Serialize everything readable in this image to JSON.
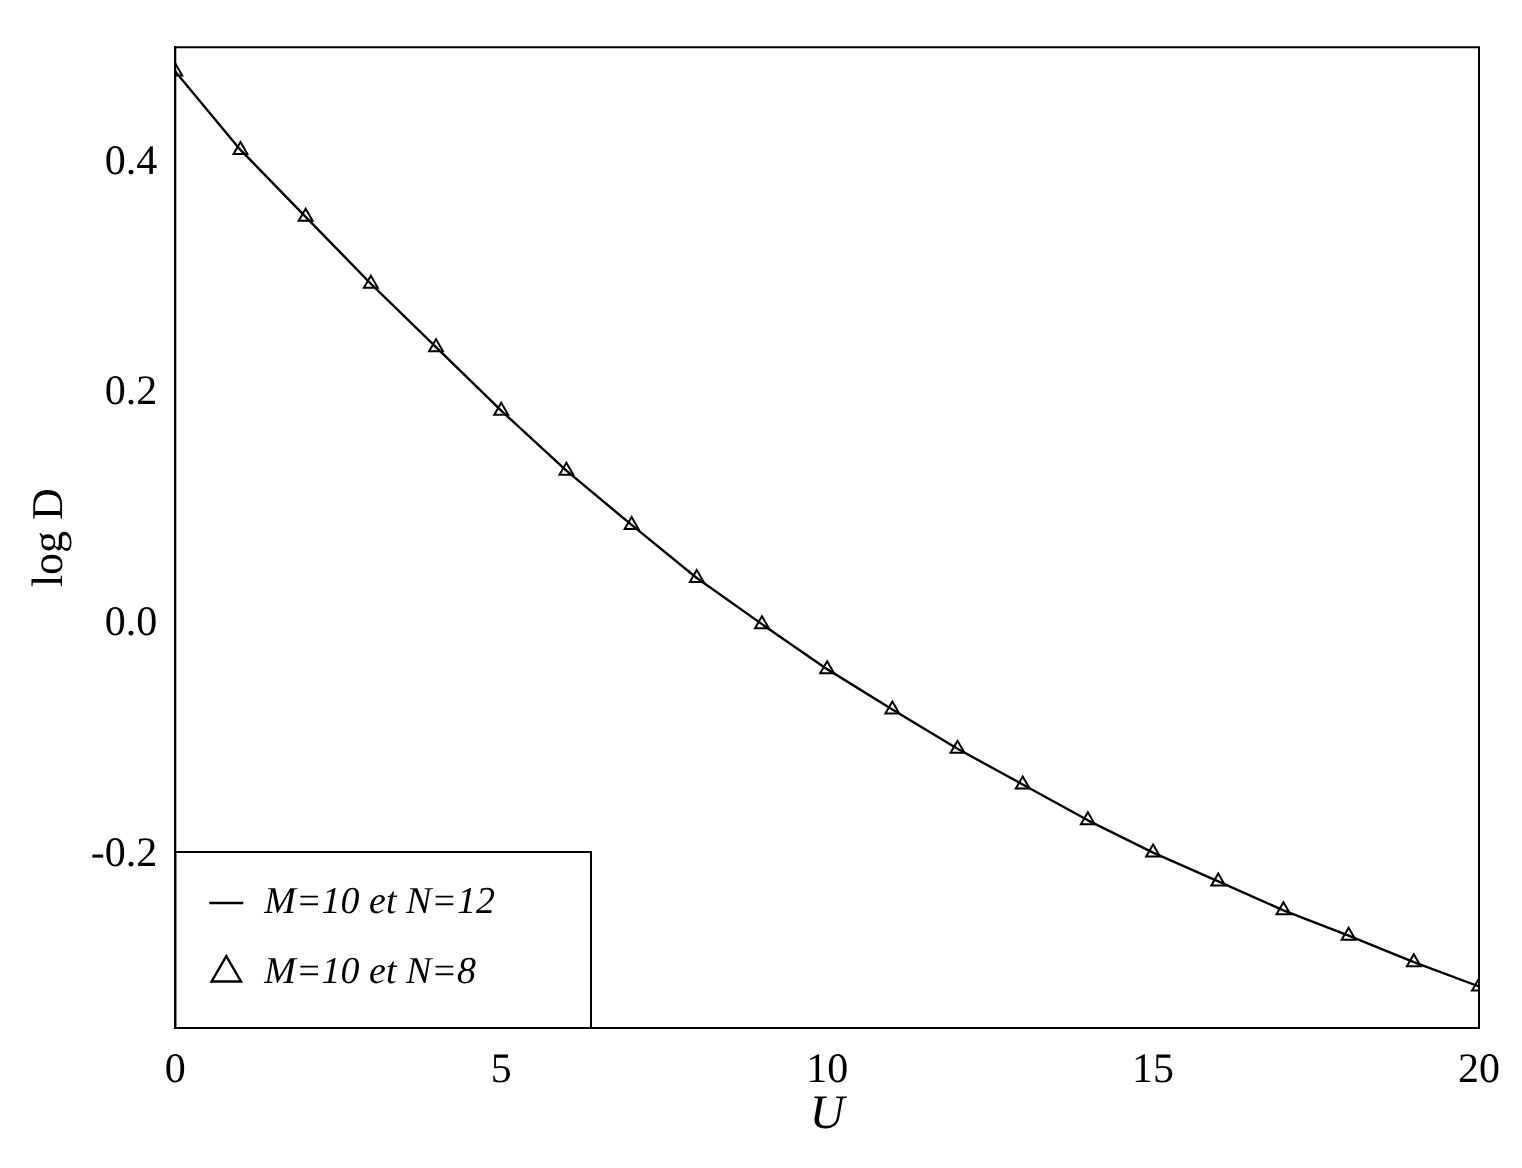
{
  "chart_data": {
    "type": "line",
    "xlabel": "U",
    "ylabel": "log D",
    "xlim": [
      0,
      20
    ],
    "ylim": [
      -0.35,
      0.5
    ],
    "xticks": [
      0,
      5,
      10,
      15,
      20
    ],
    "yticks": [
      {
        "value": -0.2,
        "label": "-0.2"
      },
      {
        "value": 0,
        "label": "0.0"
      },
      {
        "value": 0.2,
        "label": "0.2"
      },
      {
        "value": 0.4,
        "label": "0.4"
      }
    ],
    "grid": false,
    "legend": "bottom left",
    "x": [
      0,
      1,
      2,
      3,
      4,
      5,
      6,
      7,
      8,
      9,
      10,
      11,
      12,
      13,
      14,
      15,
      16,
      17,
      18,
      19,
      20
    ],
    "series": [
      {
        "name": "M=10 et N=12",
        "type": "line",
        "marker": "none",
        "color": "#000000",
        "values": [
          0.479,
          0.411,
          0.353,
          0.295,
          0.24,
          0.185,
          0.133,
          0.086,
          0.04,
          0.0,
          -0.039,
          -0.074,
          -0.108,
          -0.139,
          -0.17,
          -0.198,
          -0.223,
          -0.248,
          -0.27,
          -0.293,
          -0.314
        ]
      },
      {
        "name": "M=10 et N=8",
        "type": "scatter",
        "marker": "triangle",
        "color": "#000000",
        "values": [
          0.479,
          0.411,
          0.353,
          0.295,
          0.24,
          0.185,
          0.133,
          0.086,
          0.04,
          0.0,
          -0.039,
          -0.074,
          -0.108,
          -0.139,
          -0.17,
          -0.198,
          -0.223,
          -0.248,
          -0.27,
          -0.293,
          -0.314
        ]
      }
    ]
  }
}
